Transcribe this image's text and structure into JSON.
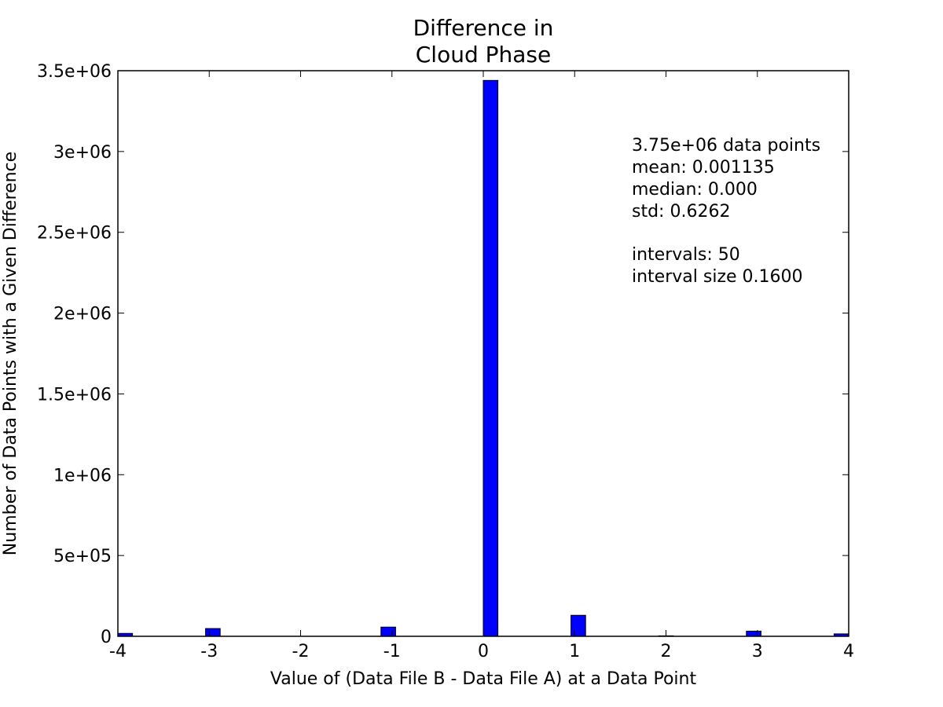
{
  "chart_data": {
    "type": "bar",
    "title_lines": [
      "Difference in",
      "Cloud Phase"
    ],
    "xlabel": "Value of (Data File B - Data File A) at a Data Point",
    "ylabel": "Number of Data Points with a Given Difference",
    "xlim": [
      -4,
      4
    ],
    "ylim": [
      0,
      3500000
    ],
    "x_ticks": [
      -4,
      -3,
      -2,
      -1,
      0,
      1,
      2,
      3,
      4
    ],
    "x_tick_labels": [
      "-4",
      "-3",
      "-2",
      "-1",
      "0",
      "1",
      "2",
      "3",
      "4"
    ],
    "y_ticks": [
      0,
      500000,
      1000000,
      1500000,
      2000000,
      2500000,
      3000000,
      3500000
    ],
    "y_tick_labels": [
      "0",
      "5e+05",
      "1e+06",
      "1.5e+06",
      "2e+06",
      "2.5e+06",
      "3e+06",
      "3.5e+06"
    ],
    "bin_width": 0.16,
    "bins": [
      {
        "start": -4.0,
        "end": -3.84,
        "count": 18000
      },
      {
        "start": -3.04,
        "end": -2.88,
        "count": 48000
      },
      {
        "start": -1.12,
        "end": -0.96,
        "count": 57000
      },
      {
        "start": 0.0,
        "end": 0.16,
        "count": 3440000
      },
      {
        "start": 0.96,
        "end": 1.12,
        "count": 130000
      },
      {
        "start": 1.92,
        "end": 2.08,
        "count": 3000
      },
      {
        "start": 2.88,
        "end": 3.04,
        "count": 32000
      },
      {
        "start": 3.84,
        "end": 4.0,
        "count": 15000
      }
    ],
    "bar_color": "#0000ff",
    "bar_edge_color": "#000000",
    "grid": false,
    "stats": {
      "line1": "3.75e+06 data points",
      "line2": "mean: 0.001135",
      "line3": "median: 0.000",
      "line4": "std: 0.6262",
      "line5": "intervals: 50",
      "line6": "interval size 0.1600"
    }
  }
}
